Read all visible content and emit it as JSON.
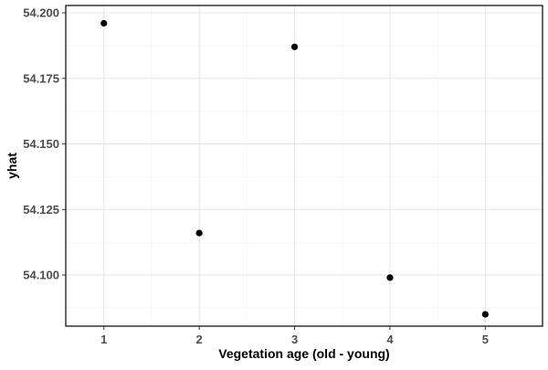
{
  "chart_data": {
    "type": "scatter",
    "xlabel": "Vegetation age (old - young)",
    "ylabel": "yhat",
    "x_ticks": [
      "1",
      "2",
      "3",
      "4",
      "5"
    ],
    "y_ticks": [
      "54.100",
      "54.125",
      "54.150",
      "54.175",
      "54.200"
    ],
    "xlim": [
      0.6,
      5.6
    ],
    "ylim": [
      54.0805,
      54.2028
    ],
    "grid": true,
    "legend": "none",
    "series": [
      {
        "x": [
          1,
          2,
          3,
          4,
          5
        ],
        "y": [
          54.196,
          54.116,
          54.187,
          54.099,
          54.085
        ]
      }
    ],
    "colors": {
      "point": "#000000",
      "grid_major": "#e6e6e6",
      "grid_minor": "#f2f2f2",
      "panel_border": "#000000",
      "tick_label": "#4d4d4d"
    }
  }
}
